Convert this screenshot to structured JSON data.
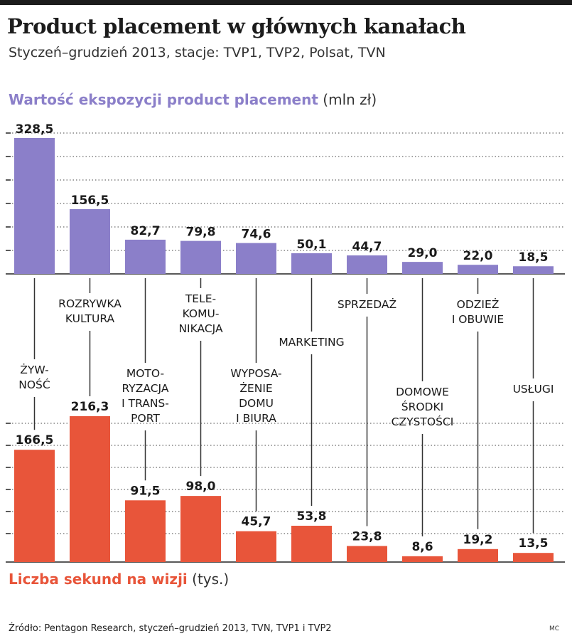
{
  "title": "Product placement w głównych kanałach",
  "subtitle": "Styczeń–grudzień 2013, stacje: TVP1, TVP2, Polsat, TVN",
  "colors": {
    "top_series": "#8b7fc9",
    "bottom_series": "#e8553a",
    "grid": "#444444",
    "stem": "#333333"
  },
  "chart_data": {
    "type": "bar",
    "categories": [
      [
        "ŻYW-",
        "NOŚĆ"
      ],
      [
        "ROZRYWKA",
        "KULTURA"
      ],
      [
        "MOTO-",
        "RYZACJA",
        "I TRANS-",
        "PORT"
      ],
      [
        "TELE-",
        "KOMU-",
        "NIKACJA"
      ],
      [
        "WYPOSA-",
        "ŻENIE",
        "DOMU",
        "I BIURA"
      ],
      [
        "MARKETING"
      ],
      [
        "SPRZEDAŻ"
      ],
      [
        "DOMOWE",
        "ŚRODKI",
        "CZYSTOŚCI"
      ],
      [
        "ODZIEŻ",
        "I OBUWIE"
      ],
      [
        "USŁUGI"
      ]
    ],
    "series": [
      {
        "name": "Wartość ekspozycji product placement",
        "unit": "(mln zł)",
        "values": [
          328.5,
          156.5,
          82.7,
          79.8,
          74.6,
          50.1,
          44.7,
          29.0,
          22.0,
          18.5
        ],
        "labels": [
          "328,5",
          "156,5",
          "82,7",
          "79,8",
          "74,6",
          "50,1",
          "44,7",
          "29,0",
          "22,0",
          "18,5"
        ]
      },
      {
        "name": "Liczba sekund na wizji",
        "unit": "(tys.)",
        "values": [
          166.5,
          216.3,
          91.5,
          98.0,
          45.7,
          53.8,
          23.8,
          8.6,
          19.2,
          13.5
        ],
        "labels": [
          "166,5",
          "216,3",
          "91,5",
          "98,0",
          "45,7",
          "53,8",
          "23,8",
          "8,6",
          "19,2",
          "13,5"
        ]
      }
    ]
  },
  "source": "Źródło: Pentagon Research, styczeń–grudzień 2013, TVN, TVP1 i TVP2",
  "credit": "MC"
}
